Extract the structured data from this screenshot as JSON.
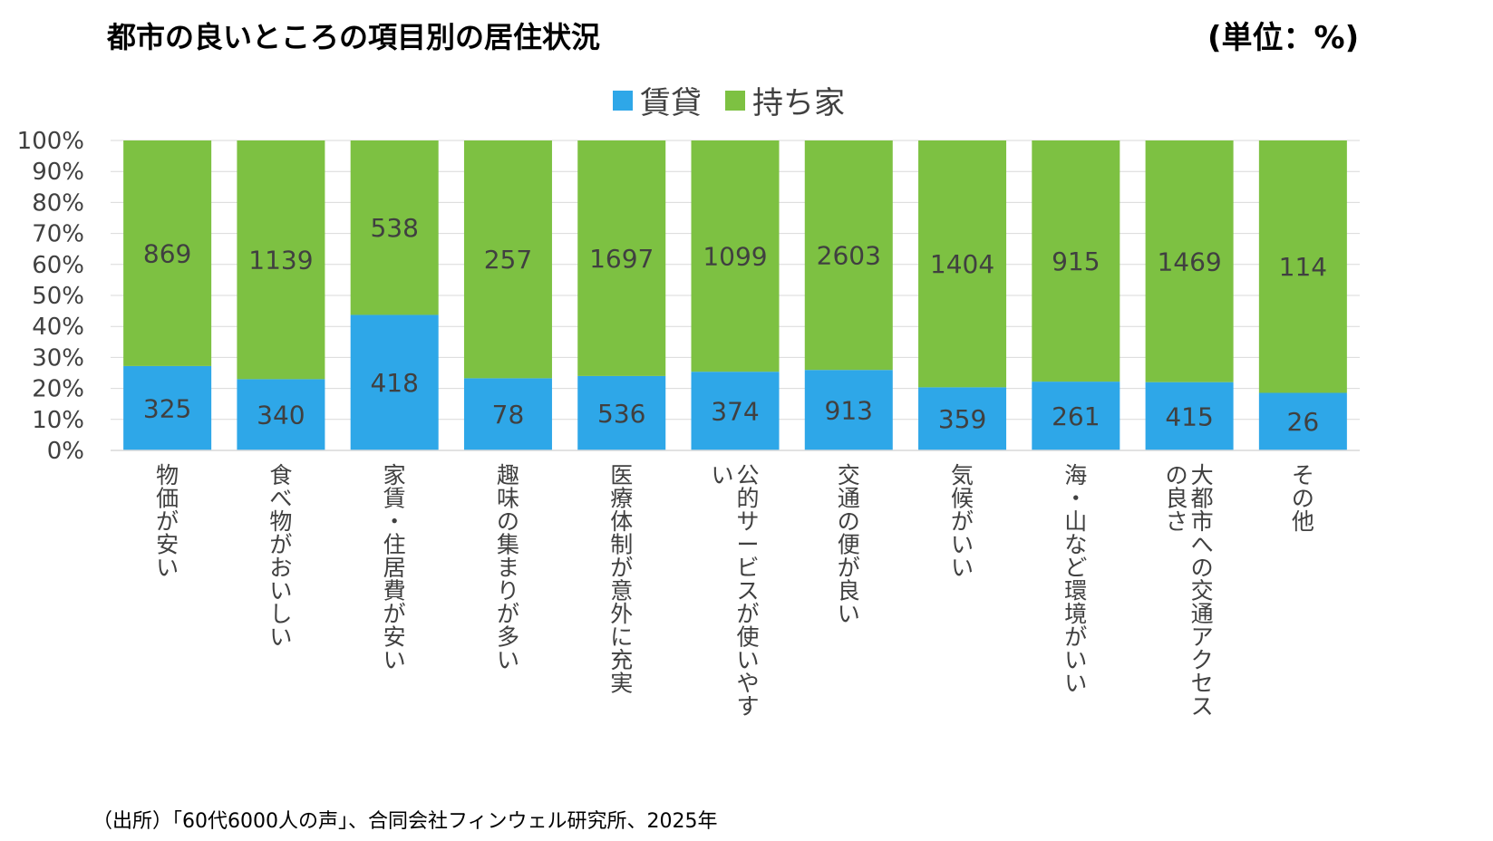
{
  "title": "都市の良いところの項目別の居住状況",
  "unit": "(単位：%)",
  "source": "（出所）「60代6000人の声」、合同会社フィンウェル研究所、2025年",
  "colors": {
    "rent": "#2EA7E8",
    "own": "#7DC142",
    "grid": "#D9D9D9",
    "text": "#404040"
  },
  "chart_data": {
    "type": "bar",
    "stacked": "percent",
    "legend_position": "top",
    "grid": true,
    "ylim": [
      0,
      100
    ],
    "yticks": [
      "0%",
      "10%",
      "20%",
      "30%",
      "40%",
      "50%",
      "60%",
      "70%",
      "80%",
      "90%",
      "100%"
    ],
    "categories": [
      "物価が安い",
      "食べ物がおいしい",
      "家賃・住居費が安い",
      "趣味の集まりが多い",
      "医療体制が意外に充実",
      "公的サービスが使いやすい",
      "交通の便が良い",
      "気候がいい",
      "海・山など環境がいい",
      "大都市への交通アクセスの良さ",
      "その他"
    ],
    "series": [
      {
        "name": "賃貸",
        "values": [
          325,
          340,
          418,
          78,
          536,
          374,
          913,
          359,
          261,
          415,
          26
        ]
      },
      {
        "name": "持ち家",
        "values": [
          869,
          1139,
          538,
          257,
          1697,
          1099,
          2603,
          1404,
          915,
          1469,
          114
        ]
      }
    ]
  }
}
